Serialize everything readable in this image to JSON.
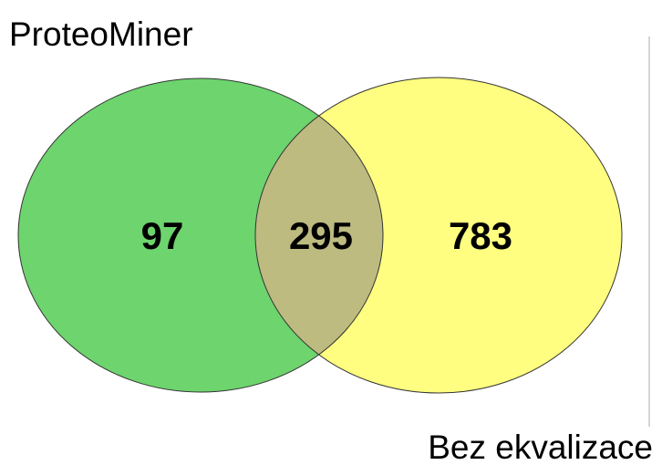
{
  "sets": [
    {
      "label": "ProteoMiner"
    },
    {
      "label": "Bez ekvalizace"
    }
  ],
  "regions": {
    "only_first": 97,
    "both": 295,
    "only_second": 783
  }
}
